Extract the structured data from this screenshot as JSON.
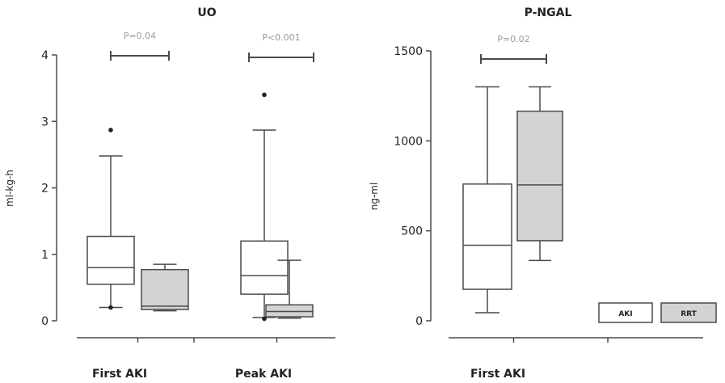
{
  "colors": {
    "aki_fill": "#ffffff",
    "rrt_fill": "#d3d3d3",
    "stroke": "#4a4a4a",
    "pvalue_text": "#9a9a9a"
  },
  "legend": {
    "items": [
      {
        "label": "AKI"
      },
      {
        "label": "RRT"
      }
    ],
    "placement": "bottom-right"
  },
  "chart_data": [
    {
      "type": "box",
      "title": "UO",
      "ylabel": "ml-kg-h",
      "ylim": [
        0,
        4
      ],
      "yticks": [
        "0",
        "1",
        "2",
        "3",
        "4"
      ],
      "yticks_values": [
        0,
        1,
        2,
        3,
        4
      ],
      "categories": [
        "First AKI",
        "Peak AKI"
      ],
      "series": [
        {
          "name": "AKI",
          "boxes": [
            {
              "whisker_low": 0.2,
              "q1": 0.55,
              "median": 0.8,
              "q3": 1.27,
              "whisker_high": 2.48,
              "outliers": [
                0.2,
                2.87
              ]
            },
            {
              "whisker_low": 0.05,
              "q1": 0.4,
              "median": 0.68,
              "q3": 1.2,
              "whisker_high": 2.87,
              "outliers": [
                0.03,
                3.4
              ]
            }
          ]
        },
        {
          "name": "RRT",
          "boxes": [
            {
              "whisker_low": 0.15,
              "q1": 0.17,
              "median": 0.22,
              "q3": 0.77,
              "whisker_high": 0.85,
              "outliers": []
            },
            {
              "whisker_low": 0.04,
              "q1": 0.06,
              "median": 0.14,
              "q3": 0.24,
              "whisker_high": 0.91,
              "outliers": []
            }
          ]
        }
      ],
      "annotations": [
        {
          "category": 0,
          "text": "P=0.04"
        },
        {
          "category": 1,
          "text": "P<0.001"
        }
      ]
    },
    {
      "type": "box",
      "title": "P-NGAL",
      "ylabel": "ng-ml",
      "ylim": [
        0,
        1500
      ],
      "yticks": [
        "0",
        "500",
        "1000",
        "1500"
      ],
      "yticks_values": [
        0,
        500,
        1000,
        1500
      ],
      "categories": [
        "First AKI"
      ],
      "series": [
        {
          "name": "AKI",
          "boxes": [
            {
              "whisker_low": 45,
              "q1": 175,
              "median": 420,
              "q3": 760,
              "whisker_high": 1300,
              "outliers": []
            }
          ]
        },
        {
          "name": "RRT",
          "boxes": [
            {
              "whisker_low": 335,
              "q1": 445,
              "median": 755,
              "q3": 1165,
              "whisker_high": 1300,
              "outliers": []
            }
          ]
        }
      ],
      "annotations": [
        {
          "category": 0,
          "text": "P=0.02"
        }
      ]
    }
  ]
}
